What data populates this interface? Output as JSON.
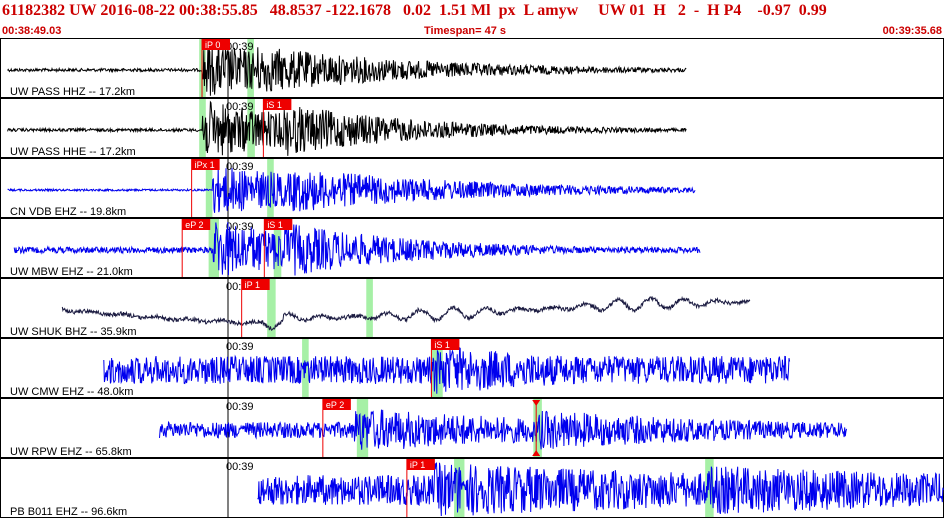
{
  "header": {
    "title": "61182382 UW 2016-08-22 00:38:55.85   48.8537 -122.1678   0.02  1.51 Ml  px  L amyw     UW 01  H   2  -  H P4    -0.97  0.99",
    "start_time": "00:38:49.03",
    "timespan": "Timespan=  47 s",
    "end_time": "00:39:35.68"
  },
  "colors": {
    "header_text": "#cc0000",
    "trace_black": "#000000",
    "trace_blue": "#0000ee",
    "trace_dark": "#1a1a40",
    "pick_red": "#ee0000",
    "window_green": "#a6f0a6",
    "border": "#000000",
    "background": "#ffffff"
  },
  "tick_label": "00:39",
  "traces": [
    {
      "label": "UW PASS HHZ -- 17.2km",
      "color_key": "trace_black",
      "picks": [
        {
          "text": "iP 0",
          "pos": 0.214
        }
      ],
      "green_windows": [
        [
          0.211,
          0.218
        ],
        [
          0.262,
          0.269
        ]
      ],
      "signal": {
        "start": 0.008,
        "end": 0.727,
        "onset": 0.214,
        "s_onset": 0.27,
        "amp": 0.55,
        "noise": 0.03,
        "decay": 0.18,
        "drift": 0
      }
    },
    {
      "label": "UW PASS HHE -- 17.2km",
      "color_key": "trace_black",
      "picks": [
        {
          "text": "iS 1",
          "pos": 0.279
        }
      ],
      "green_windows": [
        [
          0.211,
          0.218
        ],
        [
          0.262,
          0.27
        ]
      ],
      "signal": {
        "start": 0.008,
        "end": 0.727,
        "onset": 0.214,
        "s_onset": 0.3,
        "amp": 0.6,
        "noise": 0.03,
        "decay": 0.15,
        "drift": 0
      }
    },
    {
      "label": "CN VDB EHZ -- 19.8km",
      "color_key": "trace_blue",
      "picks": [
        {
          "text": "iPx 1",
          "pos": 0.203
        }
      ],
      "green_windows": [
        [
          0.218,
          0.225
        ],
        [
          0.283,
          0.29
        ]
      ],
      "signal": {
        "start": 0.008,
        "end": 0.737,
        "onset": 0.225,
        "s_onset": 0.31,
        "amp": 0.5,
        "noise": 0.02,
        "decay": 0.2,
        "drift": 0
      }
    },
    {
      "label": "UW MBW EHZ -- 21.0km",
      "color_key": "trace_blue",
      "picks": [
        {
          "text": "eP 2",
          "pos": 0.193
        },
        {
          "text": "iS 1",
          "pos": 0.28
        }
      ],
      "green_windows": [
        [
          0.221,
          0.232
        ],
        [
          0.29,
          0.298
        ]
      ],
      "signal": {
        "start": 0.015,
        "end": 0.742,
        "onset": 0.226,
        "s_onset": 0.3,
        "amp": 0.62,
        "noise": 0.06,
        "decay": 0.15,
        "drift": 0
      }
    },
    {
      "label": "UW SHUK BHZ -- 35.9km",
      "color_key": "trace_dark",
      "picks": [
        {
          "text": "iP 1",
          "pos": 0.256
        }
      ],
      "green_windows": [
        [
          0.283,
          0.292
        ],
        [
          0.388,
          0.395
        ]
      ],
      "signal": {
        "start": 0.066,
        "end": 0.795,
        "onset": 0.28,
        "s_onset": 0.4,
        "amp": 0.15,
        "noise": 0.02,
        "decay": 0.3,
        "drift": 1
      }
    },
    {
      "label": "UW CMW EHZ -- 48.0km",
      "color_key": "trace_blue",
      "picks": [
        {
          "text": "iS 1",
          "pos": 0.457
        }
      ],
      "green_windows": [
        [
          0.32,
          0.327
        ],
        [
          0.457,
          0.469
        ]
      ],
      "signal": {
        "start": 0.11,
        "end": 0.837,
        "onset": 0.46,
        "s_onset": 0.49,
        "amp": 0.5,
        "noise": 0.28,
        "decay": 0.25,
        "drift": 0
      }
    },
    {
      "label": "UW RPW EHZ -- 65.8km",
      "color_key": "trace_blue",
      "picks": [
        {
          "text": "eP 2",
          "pos": 0.342
        },
        {
          "text": "",
          "pos": 0.568
        }
      ],
      "green_windows": [
        [
          0.378,
          0.39
        ],
        [
          0.565,
          0.574
        ]
      ],
      "signal": {
        "start": 0.169,
        "end": 0.897,
        "onset": 0.375,
        "s_onset": 0.57,
        "amp": 0.45,
        "noise": 0.16,
        "decay": 0.3,
        "drift": 0
      }
    },
    {
      "label": "PB B011 EHZ -- 96.6km",
      "color_key": "trace_blue",
      "picks": [
        {
          "text": "iP 1",
          "pos": 0.431
        }
      ],
      "green_windows": [
        [
          0.481,
          0.492
        ],
        [
          0.747,
          0.756
        ]
      ],
      "signal": {
        "start": 0.273,
        "end": 1.0,
        "onset": 0.46,
        "s_onset": 0.75,
        "amp": 0.55,
        "noise": 0.3,
        "decay": 0.6,
        "drift": 0
      }
    }
  ]
}
